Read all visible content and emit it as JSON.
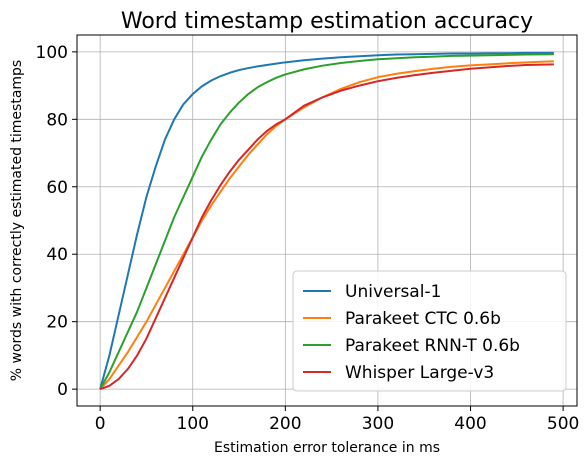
{
  "chart_data": {
    "type": "line",
    "title": "Word timestamp estimation accuracy",
    "xlabel": "Estimation error tolerance in ms",
    "ylabel": "% words with correctly estimated timestamps",
    "xlim": [
      -25,
      515
    ],
    "ylim": [
      -5,
      105
    ],
    "xticks": [
      0,
      100,
      200,
      300,
      400,
      500
    ],
    "yticks": [
      0,
      20,
      40,
      60,
      80,
      100
    ],
    "grid": true,
    "legend_position": "lower right",
    "x": [
      0,
      10,
      20,
      30,
      40,
      50,
      60,
      70,
      80,
      90,
      100,
      110,
      120,
      130,
      140,
      150,
      160,
      170,
      180,
      190,
      200,
      220,
      240,
      260,
      280,
      300,
      320,
      340,
      360,
      380,
      400,
      420,
      440,
      460,
      490
    ],
    "series": [
      {
        "name": "Universal-1",
        "color": "#1f77b4",
        "values": [
          0,
          10,
          22,
          34,
          46,
          57,
          66,
          74,
          80,
          84.5,
          87.5,
          89.8,
          91.5,
          92.8,
          93.8,
          94.6,
          95.2,
          95.7,
          96.1,
          96.5,
          96.9,
          97.5,
          98.0,
          98.4,
          98.7,
          99.0,
          99.2,
          99.3,
          99.4,
          99.5,
          99.5,
          99.6,
          99.6,
          99.7,
          99.7
        ]
      },
      {
        "name": "Parakeet CTC 0.6b",
        "color": "#ff7f0e",
        "values": [
          0,
          3,
          7,
          11,
          15.5,
          20,
          25,
          30,
          35,
          40,
          45,
          50,
          54.5,
          58.5,
          62.5,
          66,
          69.5,
          72.5,
          75.5,
          78,
          80,
          83.5,
          86.5,
          89,
          91,
          92.5,
          93.5,
          94.3,
          95,
          95.6,
          96,
          96.3,
          96.6,
          96.9,
          97.2
        ]
      },
      {
        "name": "Parakeet RNN-T 0.6b",
        "color": "#2ca02c",
        "values": [
          0,
          5,
          11,
          17,
          23,
          30,
          37,
          44,
          51,
          57,
          63,
          69,
          74,
          78.5,
          82,
          85,
          87.5,
          89.5,
          91,
          92.3,
          93.3,
          94.8,
          95.9,
          96.7,
          97.3,
          97.8,
          98.1,
          98.4,
          98.6,
          98.8,
          98.9,
          99.0,
          99.1,
          99.2,
          99.3
        ]
      },
      {
        "name": "Whisper Large-v3",
        "color": "#d62728",
        "values": [
          0,
          1,
          3,
          6,
          10,
          15,
          21,
          27,
          33,
          39,
          45,
          51,
          56,
          60.5,
          64.5,
          68,
          71,
          74,
          76.5,
          78.5,
          80,
          84,
          86.5,
          88.5,
          90,
          91.3,
          92.3,
          93.1,
          93.8,
          94.4,
          95,
          95.4,
          95.8,
          96.1,
          96.3
        ]
      }
    ]
  }
}
